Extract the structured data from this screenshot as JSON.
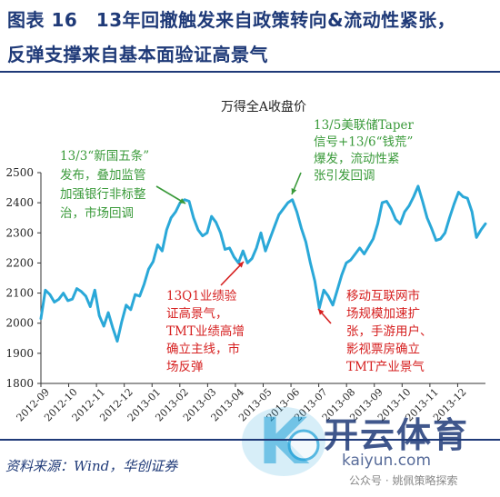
{
  "heading": {
    "line1": "图表 16　13年回撤触发来自政策转向&流动性紧张，",
    "line2": "反弹支撑来自基本面验证高景气"
  },
  "source": "资料来源：Wind，华创证券",
  "watermark": {
    "brand": "开云体育",
    "url": "kaiyun.com",
    "wechat": "公众号 · 姚佩策略探索",
    "logo_letter": "K"
  },
  "colors": {
    "line": "#2aa8d8",
    "green_text": "#3a9a3a",
    "red_text": "#d62020",
    "heading": "#1f3a78"
  },
  "chart_data": {
    "type": "line",
    "title": "万得全A收盘价",
    "ylim": [
      1800,
      2500
    ],
    "yticks": [
      1800,
      1900,
      2000,
      2100,
      2200,
      2300,
      2400,
      2500
    ],
    "xticks": [
      "2012-09",
      "2012-10",
      "2012-11",
      "2012-12",
      "2013-01",
      "2013-02",
      "2013-03",
      "2013-04",
      "2013-05",
      "2013-06",
      "2013-07",
      "2013-08",
      "2013-09",
      "2013-10",
      "2013-11",
      "2013-12"
    ],
    "series": [
      {
        "values": [
          2015,
          2110,
          2095,
          2070,
          2080,
          2100,
          2075,
          2080,
          2115,
          2105,
          2090,
          2055,
          2110,
          2025,
          1990,
          2035,
          1985,
          1940,
          2005,
          2060,
          2045,
          2095,
          2090,
          2130,
          2180,
          2205,
          2260,
          2240,
          2310,
          2350,
          2370,
          2400,
          2410,
          2405,
          2350,
          2310,
          2290,
          2300,
          2355,
          2335,
          2300,
          2245,
          2250,
          2220,
          2200,
          2240,
          2200,
          2215,
          2250,
          2300,
          2240,
          2280,
          2320,
          2360,
          2380,
          2400,
          2410,
          2370,
          2315,
          2270,
          2200,
          2140,
          2050,
          2110,
          2090,
          2060,
          2110,
          2160,
          2200,
          2210,
          2230,
          2250,
          2230,
          2255,
          2280,
          2330,
          2400,
          2405,
          2380,
          2345,
          2330,
          2370,
          2390,
          2420,
          2455,
          2405,
          2350,
          2315,
          2275,
          2280,
          2300,
          2350,
          2395,
          2435,
          2420,
          2415,
          2370,
          2285,
          2310,
          2330
        ]
      }
    ],
    "annotations": [
      {
        "text": [
          "13/3“新国五条”",
          "发布，叠加监管",
          "加强银行非标整",
          "治，市场回调"
        ],
        "color": "green"
      },
      {
        "text": [
          "13/5美联储Taper",
          "信号+13/6“钱荒”",
          "爆发，流动性紧",
          "张引发回调"
        ],
        "color": "green"
      },
      {
        "text": [
          "13Q1业绩验",
          "证高景气，",
          "TMT业绩高增",
          "确立主线，市",
          "场反弹"
        ],
        "color": "red"
      },
      {
        "text": [
          "移动互联网市",
          "场规模加速扩",
          "张，手游用户、",
          "影视票房确立",
          "TMT产业景气"
        ],
        "color": "red"
      }
    ]
  }
}
